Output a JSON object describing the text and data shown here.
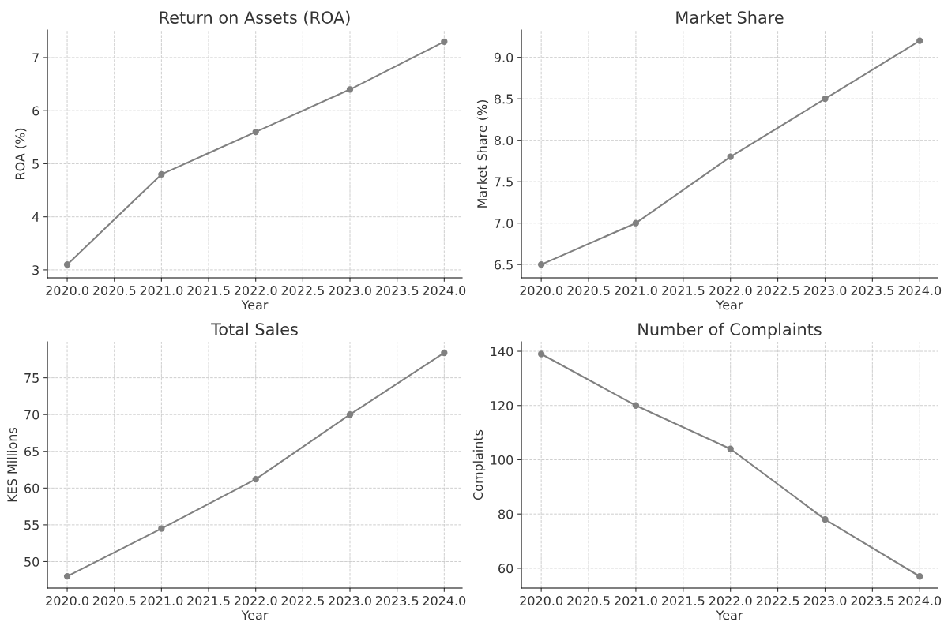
{
  "chart_data": [
    {
      "type": "line",
      "title": "Return on Assets (ROA)",
      "xlabel": "Year",
      "ylabel": "ROA (%)",
      "x": [
        2020,
        2021,
        2022,
        2023,
        2024
      ],
      "series": [
        {
          "color": "#808080",
          "values": [
            3.1,
            4.8,
            5.6,
            6.4,
            7.3
          ]
        }
      ],
      "xlim": [
        2019.79,
        2024.19
      ],
      "xticks": [
        {
          "value": 2020,
          "label": "2020.0"
        },
        {
          "value": 2020.5,
          "label": "2020.5"
        },
        {
          "value": 2021,
          "label": "2021.0"
        },
        {
          "value": 2021.5,
          "label": "2021.5"
        },
        {
          "value": 2022,
          "label": "2022.0"
        },
        {
          "value": 2022.5,
          "label": "2022.5"
        },
        {
          "value": 2023,
          "label": "2023.0"
        },
        {
          "value": 2023.5,
          "label": "2023.5"
        },
        {
          "value": 2024,
          "label": "2024.0"
        }
      ],
      "ylim": [
        2.85,
        7.52
      ],
      "yticks": [
        3,
        4,
        5,
        6,
        7
      ],
      "grid": true,
      "marker": "circle",
      "line_style": "solid"
    },
    {
      "type": "line",
      "title": "Market Share",
      "xlabel": "Year",
      "ylabel": "Market Share (%)",
      "x": [
        2020,
        2021,
        2022,
        2023,
        2024
      ],
      "series": [
        {
          "color": "#808080",
          "values": [
            6.5,
            7.0,
            7.8,
            8.5,
            9.2
          ]
        }
      ],
      "xlim": [
        2019.79,
        2024.19
      ],
      "xticks": [
        {
          "value": 2020,
          "label": "2020.0"
        },
        {
          "value": 2020.5,
          "label": "2020.5"
        },
        {
          "value": 2021,
          "label": "2021.0"
        },
        {
          "value": 2021.5,
          "label": "2021.5"
        },
        {
          "value": 2022,
          "label": "2022.0"
        },
        {
          "value": 2022.5,
          "label": "2022.5"
        },
        {
          "value": 2023,
          "label": "2023.0"
        },
        {
          "value": 2023.5,
          "label": "2023.5"
        },
        {
          "value": 2024,
          "label": "2024.0"
        }
      ],
      "ylim": [
        6.34,
        9.33
      ],
      "yticks": [
        {
          "value": 6.5,
          "label": "6.5"
        },
        {
          "value": 7.0,
          "label": "7.0"
        },
        {
          "value": 7.5,
          "label": "7.5"
        },
        {
          "value": 8.0,
          "label": "8.0"
        },
        {
          "value": 8.5,
          "label": "8.5"
        },
        {
          "value": 9.0,
          "label": "9.0"
        }
      ],
      "grid": true,
      "marker": "circle",
      "line_style": "solid"
    },
    {
      "type": "line",
      "title": "Total Sales",
      "xlabel": "Year",
      "ylabel": "KES Millions",
      "x": [
        2020,
        2021,
        2022,
        2023,
        2024
      ],
      "series": [
        {
          "color": "#808080",
          "values": [
            48,
            54.5,
            61.2,
            70,
            78.4
          ]
        }
      ],
      "xlim": [
        2019.79,
        2024.19
      ],
      "xticks": [
        {
          "value": 2020,
          "label": "2020.0"
        },
        {
          "value": 2020.5,
          "label": "2020.5"
        },
        {
          "value": 2021,
          "label": "2021.0"
        },
        {
          "value": 2021.5,
          "label": "2021.5"
        },
        {
          "value": 2022,
          "label": "2022.0"
        },
        {
          "value": 2022.5,
          "label": "2022.5"
        },
        {
          "value": 2023,
          "label": "2023.0"
        },
        {
          "value": 2023.5,
          "label": "2023.5"
        },
        {
          "value": 2024,
          "label": "2024.0"
        }
      ],
      "ylim": [
        46.4,
        79.9
      ],
      "yticks": [
        50,
        55,
        60,
        65,
        70,
        75
      ],
      "grid": true,
      "marker": "circle",
      "line_style": "solid"
    },
    {
      "type": "line",
      "title": "Number of Complaints",
      "xlabel": "Year",
      "ylabel": "Complaints",
      "x": [
        2020,
        2021,
        2022,
        2023,
        2024
      ],
      "series": [
        {
          "color": "#808080",
          "values": [
            139,
            120,
            104,
            78,
            57
          ]
        }
      ],
      "xlim": [
        2019.79,
        2024.19
      ],
      "xticks": [
        {
          "value": 2020,
          "label": "2020.0"
        },
        {
          "value": 2020.5,
          "label": "2020.5"
        },
        {
          "value": 2021,
          "label": "2021.0"
        },
        {
          "value": 2021.5,
          "label": "2021.5"
        },
        {
          "value": 2022,
          "label": "2022.0"
        },
        {
          "value": 2022.5,
          "label": "2022.5"
        },
        {
          "value": 2023,
          "label": "2023.0"
        },
        {
          "value": 2023.5,
          "label": "2023.5"
        },
        {
          "value": 2024,
          "label": "2024.0"
        }
      ],
      "ylim": [
        52.7,
        143.5
      ],
      "yticks": [
        60,
        80,
        100,
        120,
        140
      ],
      "grid": true,
      "marker": "circle",
      "line_style": "solid"
    }
  ]
}
